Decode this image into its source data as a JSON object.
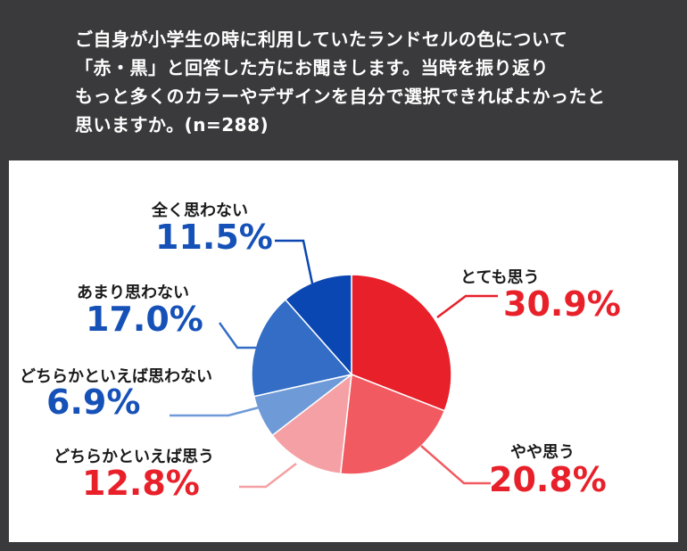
{
  "question": {
    "lines": [
      "ご自身が小学生の時に利用していたランドセルの色について",
      "「赤・黒」と回答した方にお聞きします。当時を振り返り",
      "もっと多くのカラーやデザインを自分で選択できればよかったと",
      "思いますか。(n=288)"
    ]
  },
  "chart_data": {
    "type": "pie",
    "start": "12 o'clock",
    "direction": "clockwise",
    "slices": [
      {
        "label": "とても思う",
        "value": 30.9,
        "display": "30.9%",
        "color": "#e8202a"
      },
      {
        "label": "やや思う",
        "value": 20.8,
        "display": "20.8%",
        "color": "#f05a60"
      },
      {
        "label": "どちらかといえば思う",
        "value": 12.8,
        "display": "12.8%",
        "color": "#f5a0a4"
      },
      {
        "label": "どちらかといえば思わない",
        "value": 6.9,
        "display": "6.9%",
        "color": "#6f9ad8"
      },
      {
        "label": "あまり思わない",
        "value": 17.0,
        "display": "17.0%",
        "color": "#336dc6"
      },
      {
        "label": "全く思わない",
        "value": 11.5,
        "display": "11.5%",
        "color": "#0b47b2"
      }
    ],
    "colors": {
      "agree_text": "#e8202a",
      "disagree_text": "#1651b8"
    }
  }
}
